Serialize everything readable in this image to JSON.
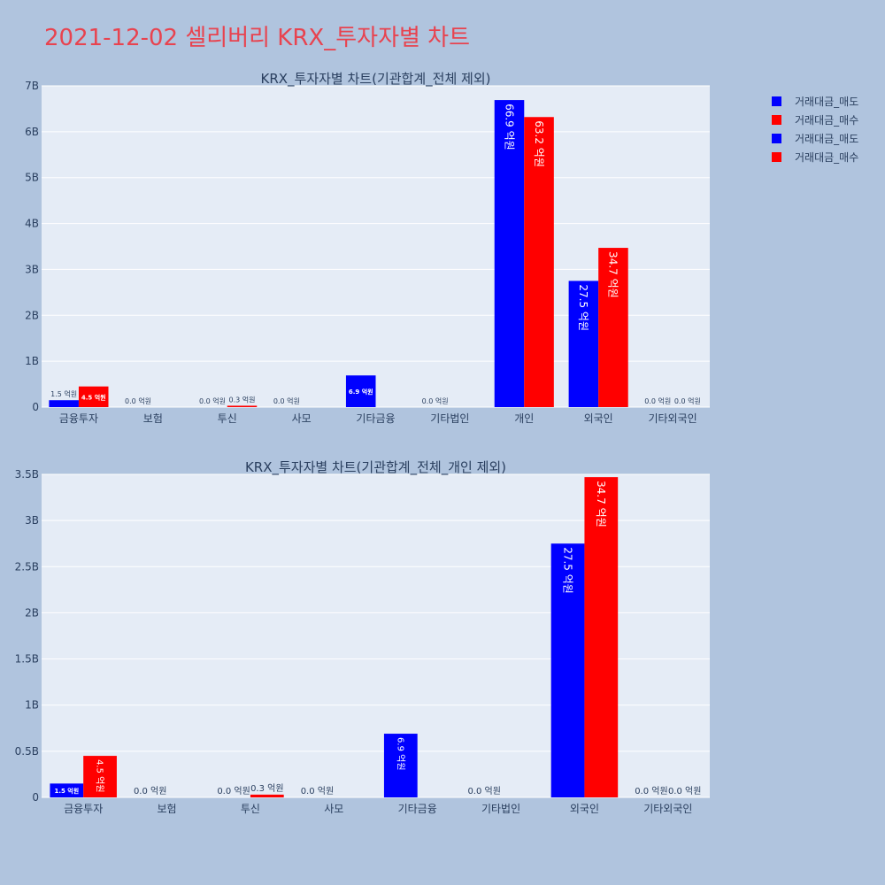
{
  "page": {
    "title": "2021-12-02 셀리버리 KRX_투자자별 차트"
  },
  "legend": [
    {
      "label": "거래대금_매도",
      "color": "#0000ff"
    },
    {
      "label": "거래대금_매수",
      "color": "#ff0000"
    },
    {
      "label": "거래대금_매도",
      "color": "#0000ff"
    },
    {
      "label": "거래대금_매수",
      "color": "#ff0000"
    }
  ],
  "colors": {
    "background": "#b0c4de",
    "plot_background": "#e5ecf6",
    "sell": "#0000ff",
    "buy": "#ff0000",
    "title": "#e8434f"
  },
  "chart_data": [
    {
      "type": "bar",
      "title": "KRX_투자자별 차트(기관합계_전체 제외)",
      "categories": [
        "금융투자",
        "보험",
        "투신",
        "사모",
        "기타금융",
        "기타법인",
        "개인",
        "외국인",
        "기타외국인"
      ],
      "series": [
        {
          "name": "거래대금_매도",
          "values": [
            150000000,
            0,
            0,
            0,
            690000000,
            0,
            6690000000,
            2750000000,
            0
          ],
          "labels": [
            "1.5 억원",
            "0.0 억원",
            "0.0 억원",
            "0.0 억원",
            "6.9 억원",
            "0.0 억원",
            "66.9 억원",
            "27.5 억원",
            "0.0 억원"
          ]
        },
        {
          "name": "거래대금_매수",
          "values": [
            450000000,
            0,
            30000000,
            0,
            0,
            0,
            6320000000,
            3470000000,
            0
          ],
          "labels": [
            "4.5 억원",
            "",
            "0.3 억원",
            "",
            "",
            "",
            "63.2 억원",
            "34.7 억원",
            "0.0 억원"
          ]
        }
      ],
      "yticks": [
        0,
        1000000000,
        2000000000,
        3000000000,
        4000000000,
        5000000000,
        6000000000,
        7000000000
      ],
      "ytick_labels": [
        "0",
        "1B",
        "2B",
        "3B",
        "4B",
        "5B",
        "6B",
        "7B"
      ],
      "ylim": [
        0,
        7000000000
      ],
      "grid": true
    },
    {
      "type": "bar",
      "title": "KRX_투자자별 차트(기관합계_전체_개인 제외)",
      "categories": [
        "금융투자",
        "보험",
        "투신",
        "사모",
        "기타금융",
        "기타법인",
        "외국인",
        "기타외국인"
      ],
      "series": [
        {
          "name": "거래대금_매도",
          "values": [
            150000000,
            0,
            0,
            0,
            690000000,
            0,
            2750000000,
            0
          ],
          "labels": [
            "1.5 억원",
            "0.0 억원",
            "0.0 억원",
            "0.0 억원",
            "6.9 억원",
            "0.0 억원",
            "27.5 억원",
            "0.0 억원"
          ]
        },
        {
          "name": "거래대금_매수",
          "values": [
            450000000,
            0,
            30000000,
            0,
            0,
            0,
            3470000000,
            0
          ],
          "labels": [
            "4.5 억원",
            "",
            "0.3 억원",
            "",
            "",
            "",
            "34.7 억원",
            "0.0 억원"
          ]
        }
      ],
      "yticks": [
        0,
        500000000,
        1000000000,
        1500000000,
        2000000000,
        2500000000,
        3000000000,
        3500000000
      ],
      "ytick_labels": [
        "0",
        "0.5B",
        "1B",
        "1.5B",
        "2B",
        "2.5B",
        "3B",
        "3.5B"
      ],
      "ylim": [
        0,
        3500000000
      ],
      "grid": true
    }
  ]
}
